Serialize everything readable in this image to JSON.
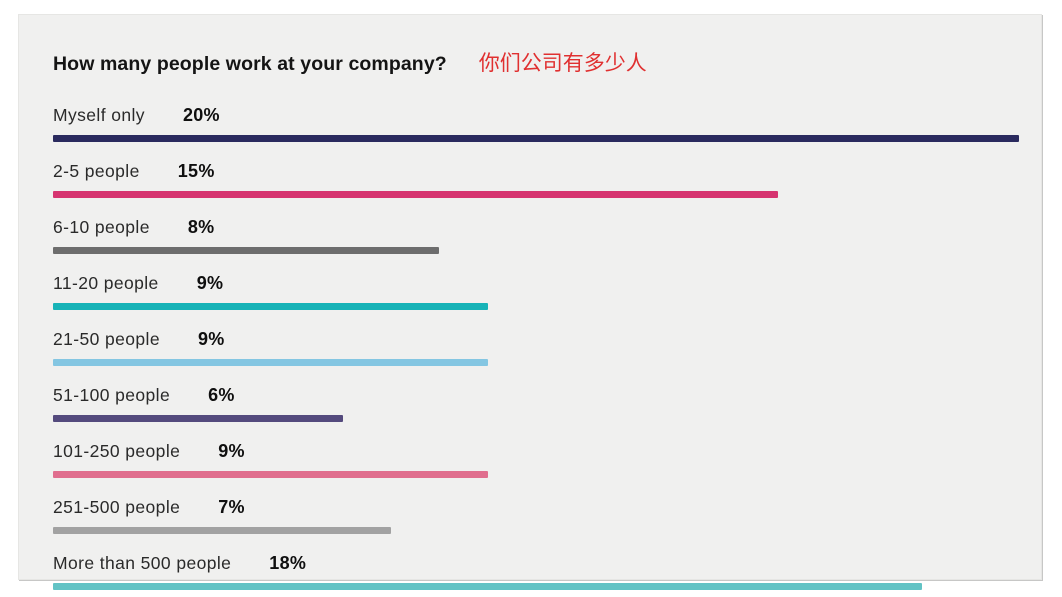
{
  "panel": {
    "title_en": "How many people work at your company?",
    "title_zh": "你们公司有多少人",
    "title_zh_color": "#e03030"
  },
  "chart_data": {
    "type": "bar",
    "orientation": "horizontal",
    "title": "How many people work at your company?",
    "title_translation_zh": "你们公司有多少人",
    "categories": [
      "Myself only",
      "2-5 people",
      "6-10 people",
      "11-20 people",
      "21-50 people",
      "51-100 people",
      "101-250 people",
      "251-500 people",
      "More than 500 people"
    ],
    "values": [
      20,
      15,
      8,
      9,
      9,
      6,
      9,
      7,
      18
    ],
    "value_labels": [
      "20%",
      "15%",
      "8%",
      "9%",
      "9%",
      "6%",
      "9%",
      "7%",
      "18%"
    ],
    "bar_colors": [
      "#2a2a5e",
      "#d63470",
      "#6d6d6d",
      "#17b3b7",
      "#84c6e2",
      "#544a7d",
      "#e06e8e",
      "#a2a2a2",
      "#62c3c5"
    ],
    "xlabel": "",
    "ylabel": "",
    "x_scale_max": 20,
    "grid": false,
    "legend": false,
    "background": "#f0f0ef"
  }
}
